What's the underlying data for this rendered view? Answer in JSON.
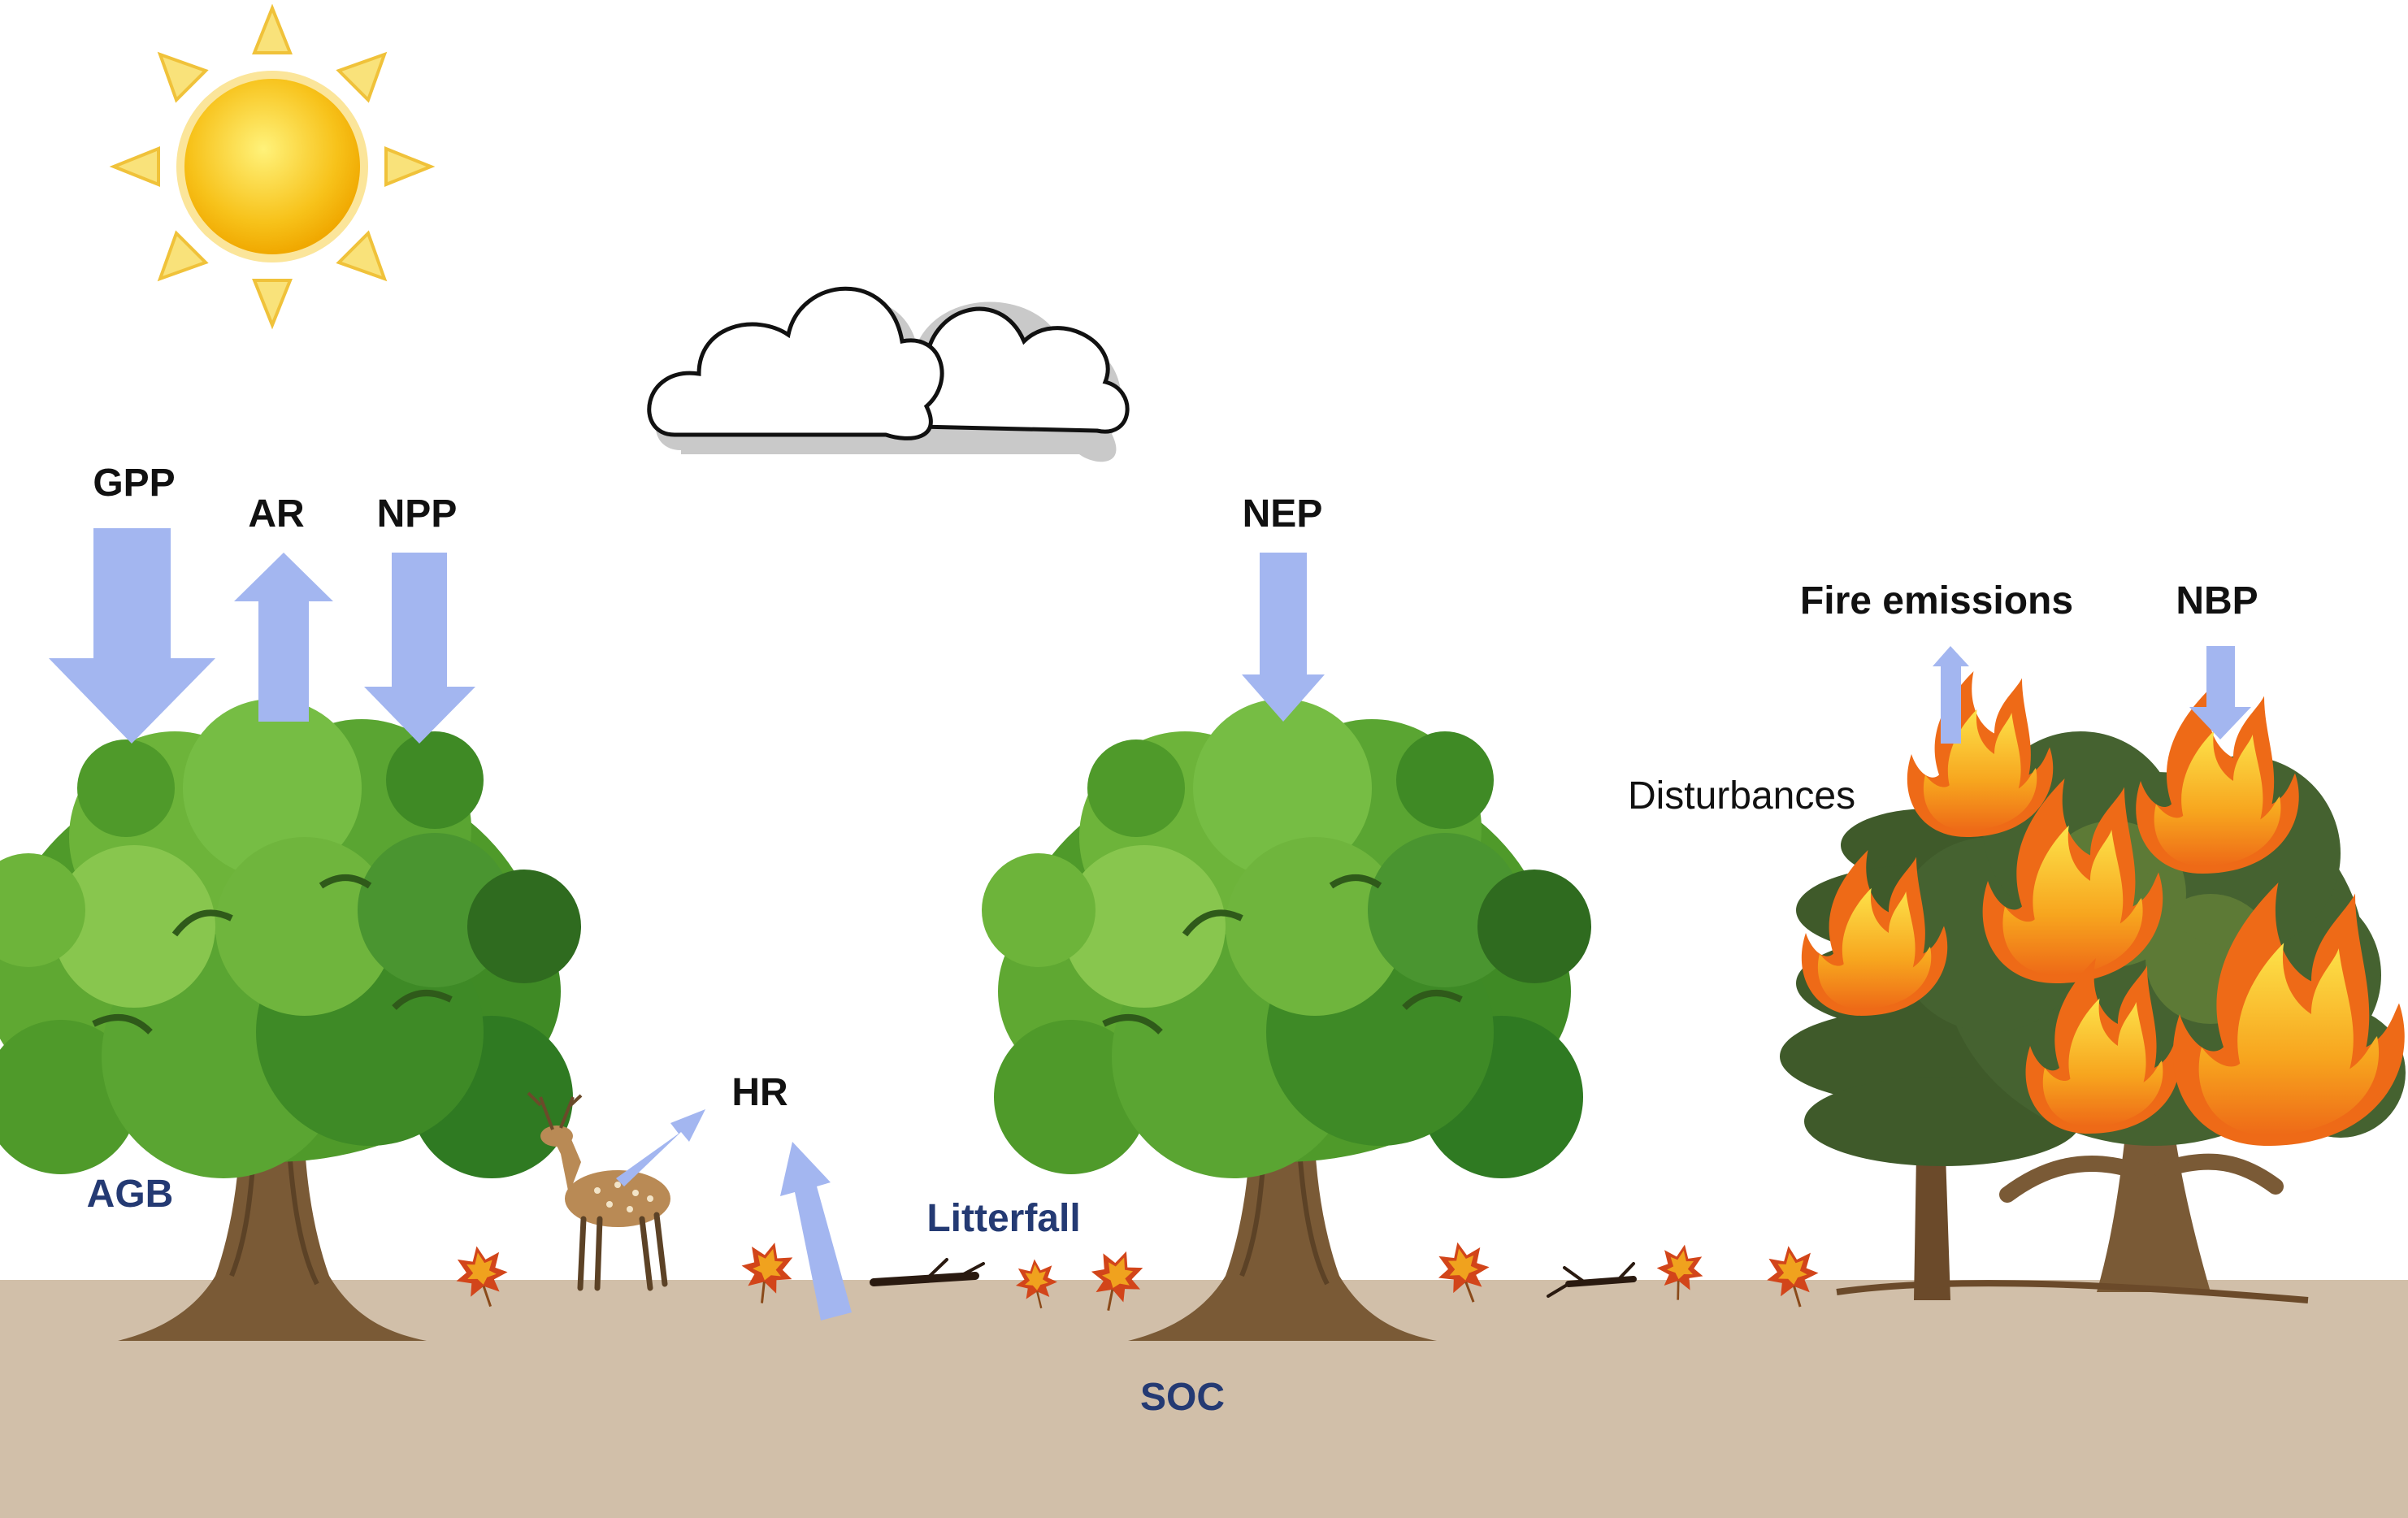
{
  "labels": {
    "gpp": "GPP",
    "ar": "AR",
    "npp": "NPP",
    "nep": "NEP",
    "fire_emissions": "Fire emissions",
    "nbp": "NBP",
    "disturbances": "Disturbances",
    "hr": "HR",
    "agb": "AGB",
    "litterfall": "Litterfall",
    "soc": "SOC"
  },
  "colors": {
    "arrow": "#a3b6f0",
    "soil": "#d1bfa9",
    "label_navy": "#243a73",
    "label_black": "#111111",
    "sun_core": "#f7c21a",
    "sun_ray": "#f9e27a",
    "foliage_light": "#7fbf3e",
    "foliage_mid": "#4f9a2a",
    "foliage_dark": "#2f6b1f",
    "trunk": "#7a5a36",
    "flame_outer": "#f07a1c",
    "flame_inner": "#f9d232",
    "burnt_foliage": "#3f5a2a"
  }
}
